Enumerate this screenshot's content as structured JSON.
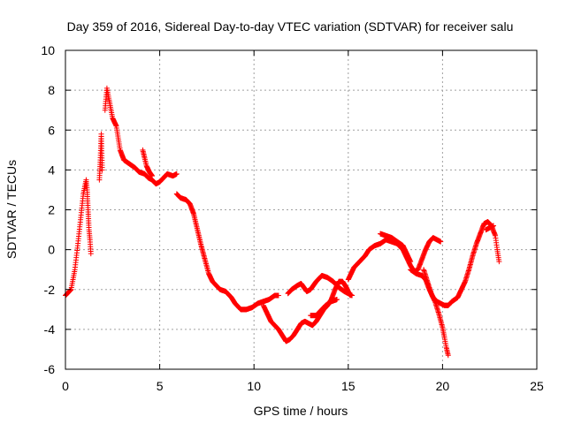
{
  "chart_data": {
    "type": "scatter",
    "title": "Day 359 of 2016, Sidereal Day-to-day VTEC variation (SDTVAR) for receiver salu",
    "xlabel": "GPS time / hours",
    "ylabel": "SDTVAR / TECUs",
    "xlim": [
      0,
      25
    ],
    "ylim": [
      -6,
      10
    ],
    "xticks": [
      "0",
      "5",
      "10",
      "15",
      "20",
      "25"
    ],
    "yticks": [
      "-6",
      "-4",
      "-2",
      "0",
      "2",
      "4",
      "6",
      "8",
      "10"
    ],
    "grid": true,
    "marker": "+",
    "color": "#ff0000",
    "series": [
      {
        "name": "salu",
        "segments": [
          [
            [
              0.0,
              -2.3
            ],
            [
              0.3,
              -2.0
            ],
            [
              0.5,
              -1.0
            ],
            [
              0.65,
              0.2
            ],
            [
              0.8,
              1.5
            ],
            [
              0.95,
              2.8
            ],
            [
              1.1,
              3.5
            ],
            [
              1.15,
              3.0
            ],
            [
              1.2,
              2.0
            ],
            [
              1.25,
              1.0
            ],
            [
              1.3,
              0.5
            ],
            [
              1.35,
              -0.2
            ]
          ],
          [
            [
              1.8,
              3.5
            ],
            [
              1.85,
              4.5
            ],
            [
              1.9,
              5.8
            ],
            [
              1.95,
              4.0
            ]
          ],
          [
            [
              2.1,
              7.0
            ],
            [
              2.2,
              8.1
            ],
            [
              2.3,
              7.6
            ],
            [
              2.5,
              6.6
            ],
            [
              2.7,
              6.2
            ],
            [
              2.8,
              5.6
            ],
            [
              2.9,
              5.0
            ],
            [
              3.1,
              4.5
            ],
            [
              3.4,
              4.3
            ],
            [
              3.7,
              4.1
            ],
            [
              3.9,
              3.9
            ],
            [
              4.2,
              3.8
            ],
            [
              4.4,
              3.6
            ],
            [
              4.6,
              3.5
            ],
            [
              4.8,
              3.3
            ],
            [
              5.0,
              3.4
            ],
            [
              5.2,
              3.6
            ],
            [
              5.4,
              3.8
            ],
            [
              5.7,
              3.7
            ],
            [
              5.9,
              3.8
            ]
          ],
          [
            [
              4.1,
              5.0
            ],
            [
              4.2,
              4.6
            ],
            [
              4.3,
              4.2
            ],
            [
              4.45,
              3.9
            ],
            [
              4.6,
              3.7
            ]
          ],
          [
            [
              5.9,
              2.8
            ],
            [
              6.1,
              2.6
            ],
            [
              6.4,
              2.5
            ],
            [
              6.6,
              2.3
            ],
            [
              6.8,
              1.8
            ],
            [
              7.0,
              1.0
            ],
            [
              7.2,
              0.2
            ],
            [
              7.4,
              -0.5
            ],
            [
              7.6,
              -1.2
            ],
            [
              7.8,
              -1.6
            ],
            [
              8.0,
              -1.8
            ],
            [
              8.2,
              -2.0
            ],
            [
              8.5,
              -2.1
            ],
            [
              8.8,
              -2.4
            ],
            [
              9.0,
              -2.7
            ],
            [
              9.3,
              -3.0
            ],
            [
              9.6,
              -3.0
            ],
            [
              9.9,
              -2.9
            ],
            [
              10.2,
              -2.7
            ],
            [
              10.5,
              -2.6
            ],
            [
              10.8,
              -2.5
            ],
            [
              11.1,
              -2.3
            ],
            [
              11.3,
              -2.3
            ]
          ],
          [
            [
              10.5,
              -2.8
            ],
            [
              10.7,
              -3.2
            ],
            [
              10.9,
              -3.6
            ],
            [
              11.1,
              -3.8
            ],
            [
              11.3,
              -4.0
            ],
            [
              11.5,
              -4.3
            ],
            [
              11.7,
              -4.6
            ],
            [
              11.9,
              -4.5
            ],
            [
              12.1,
              -4.3
            ],
            [
              12.3,
              -4.0
            ],
            [
              12.5,
              -3.7
            ],
            [
              12.7,
              -3.6
            ],
            [
              12.9,
              -3.7
            ],
            [
              13.1,
              -3.8
            ],
            [
              13.3,
              -3.6
            ],
            [
              13.5,
              -3.3
            ],
            [
              13.7,
              -3.0
            ],
            [
              13.9,
              -2.8
            ],
            [
              14.1,
              -2.5
            ],
            [
              14.3,
              -2.0
            ],
            [
              14.5,
              -1.6
            ],
            [
              14.7,
              -1.6
            ],
            [
              14.9,
              -1.9
            ],
            [
              15.1,
              -2.3
            ]
          ],
          [
            [
              11.8,
              -2.2
            ],
            [
              12.0,
              -2.0
            ],
            [
              12.3,
              -1.8
            ],
            [
              12.5,
              -1.7
            ],
            [
              12.8,
              -2.1
            ],
            [
              13.0,
              -2.0
            ],
            [
              13.3,
              -1.6
            ],
            [
              13.6,
              -1.3
            ],
            [
              13.9,
              -1.4
            ],
            [
              14.2,
              -1.6
            ],
            [
              14.5,
              -1.9
            ],
            [
              14.8,
              -2.1
            ],
            [
              15.0,
              -2.2
            ],
            [
              15.2,
              -2.3
            ]
          ],
          [
            [
              13.0,
              -3.3
            ],
            [
              13.3,
              -3.3
            ],
            [
              13.6,
              -3.0
            ],
            [
              13.8,
              -2.8
            ],
            [
              14.1,
              -2.6
            ],
            [
              14.4,
              -2.5
            ]
          ],
          [
            [
              15.0,
              -1.5
            ],
            [
              15.3,
              -0.9
            ],
            [
              15.6,
              -0.6
            ],
            [
              15.9,
              -0.3
            ],
            [
              16.1,
              0.0
            ],
            [
              16.4,
              0.2
            ],
            [
              16.7,
              0.3
            ],
            [
              17.0,
              0.5
            ],
            [
              17.3,
              0.4
            ],
            [
              17.6,
              0.3
            ],
            [
              17.9,
              0.0
            ],
            [
              18.1,
              -0.4
            ],
            [
              18.3,
              -0.8
            ],
            [
              18.5,
              -1.1
            ],
            [
              18.7,
              -1.0
            ],
            [
              18.9,
              -0.5
            ],
            [
              19.1,
              0.0
            ],
            [
              19.3,
              0.4
            ],
            [
              19.5,
              0.6
            ],
            [
              19.7,
              0.5
            ],
            [
              19.9,
              0.4
            ]
          ],
          [
            [
              16.7,
              0.8
            ],
            [
              17.0,
              0.7
            ],
            [
              17.3,
              0.6
            ],
            [
              17.6,
              0.4
            ],
            [
              17.9,
              0.2
            ],
            [
              18.1,
              -0.2
            ],
            [
              18.3,
              -0.6
            ]
          ],
          [
            [
              18.3,
              -1.0
            ],
            [
              18.6,
              -1.2
            ],
            [
              18.9,
              -1.3
            ],
            [
              19.1,
              -1.5
            ],
            [
              19.3,
              -2.0
            ],
            [
              19.5,
              -2.4
            ],
            [
              19.7,
              -2.6
            ],
            [
              19.9,
              -2.7
            ],
            [
              20.1,
              -2.8
            ],
            [
              20.3,
              -2.8
            ],
            [
              20.5,
              -2.6
            ],
            [
              20.8,
              -2.4
            ],
            [
              21.0,
              -2.0
            ],
            [
              21.2,
              -1.6
            ],
            [
              21.4,
              -1.0
            ],
            [
              21.6,
              -0.3
            ],
            [
              21.8,
              0.3
            ],
            [
              22.0,
              0.8
            ],
            [
              22.2,
              1.3
            ],
            [
              22.4,
              1.4
            ],
            [
              22.6,
              1.2
            ],
            [
              22.8,
              0.7
            ],
            [
              22.9,
              0.0
            ],
            [
              23.0,
              -0.6
            ]
          ],
          [
            [
              19.0,
              -1.0
            ],
            [
              19.2,
              -1.6
            ],
            [
              19.4,
              -2.2
            ],
            [
              19.6,
              -2.6
            ],
            [
              19.8,
              -3.2
            ],
            [
              20.0,
              -3.9
            ],
            [
              20.1,
              -4.4
            ],
            [
              20.2,
              -4.9
            ],
            [
              20.3,
              -5.3
            ]
          ],
          [
            [
              22.3,
              1.0
            ],
            [
              22.5,
              1.1
            ],
            [
              22.7,
              1.2
            ]
          ]
        ]
      }
    ]
  }
}
